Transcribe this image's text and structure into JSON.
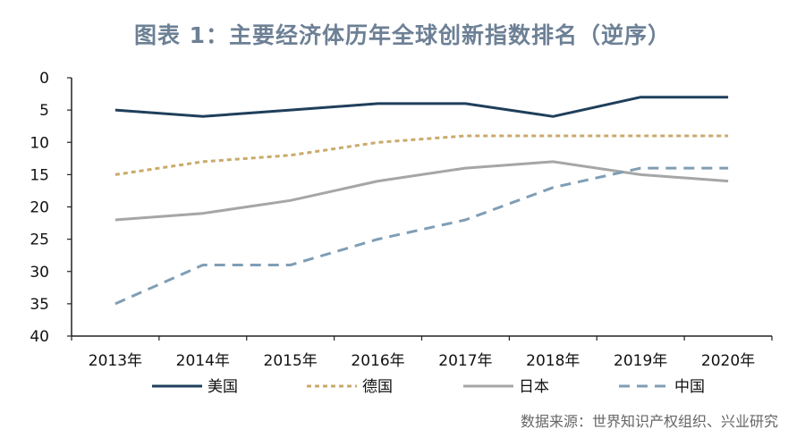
{
  "chart_data": {
    "type": "line",
    "title": "图表 1：主要经济体历年全球创新指数排名（逆序）",
    "categories": [
      "2013年",
      "2014年",
      "2015年",
      "2016年",
      "2017年",
      "2018年",
      "2019年",
      "2020年"
    ],
    "y_axis": {
      "min": 0,
      "max": 40,
      "inverted": true,
      "ticks": [
        0,
        5,
        10,
        15,
        20,
        25,
        30,
        35,
        40
      ]
    },
    "grid": false,
    "legend_position": "bottom",
    "series": [
      {
        "name": "美国",
        "values": [
          5,
          6,
          5,
          4,
          4,
          6,
          3,
          3
        ],
        "color": "#1f3f5b",
        "dash": "solid"
      },
      {
        "name": "德国",
        "values": [
          15,
          13,
          12,
          10,
          9,
          9,
          9,
          9
        ],
        "color": "#c9aa6b",
        "dash": "dashed"
      },
      {
        "name": "日本",
        "values": [
          22,
          21,
          19,
          16,
          14,
          13,
          15,
          16
        ],
        "color": "#a6a6a6",
        "dash": "solid"
      },
      {
        "name": "中国",
        "values": [
          35,
          29,
          29,
          25,
          22,
          17,
          14,
          14
        ],
        "color": "#7f9eb5",
        "dash": "dashed"
      }
    ]
  },
  "source": "数据来源：世界知识产权组织、兴业研究"
}
